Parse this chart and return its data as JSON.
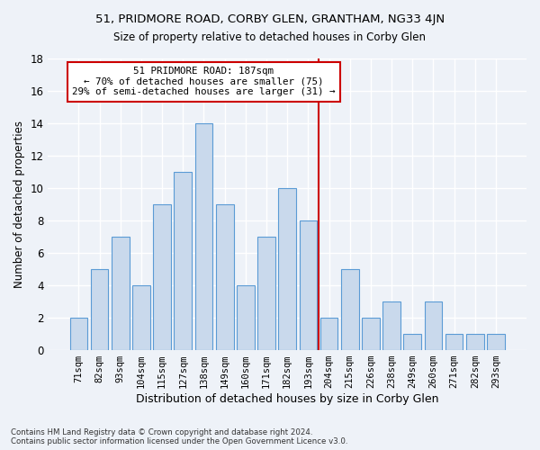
{
  "title": "51, PRIDMORE ROAD, CORBY GLEN, GRANTHAM, NG33 4JN",
  "subtitle": "Size of property relative to detached houses in Corby Glen",
  "xlabel": "Distribution of detached houses by size in Corby Glen",
  "ylabel": "Number of detached properties",
  "categories": [
    "71sqm",
    "82sqm",
    "93sqm",
    "104sqm",
    "115sqm",
    "127sqm",
    "138sqm",
    "149sqm",
    "160sqm",
    "171sqm",
    "182sqm",
    "193sqm",
    "204sqm",
    "215sqm",
    "226sqm",
    "238sqm",
    "249sqm",
    "260sqm",
    "271sqm",
    "282sqm",
    "293sqm"
  ],
  "values": [
    2,
    5,
    7,
    4,
    9,
    11,
    14,
    9,
    4,
    7,
    10,
    8,
    2,
    5,
    2,
    3,
    1,
    3,
    1,
    1,
    1
  ],
  "bar_color": "#c9d9ec",
  "bar_edge_color": "#5b9bd5",
  "property_line_idx": 11.5,
  "property_line_color": "#cc0000",
  "annotation_text": "51 PRIDMORE ROAD: 187sqm\n← 70% of detached houses are smaller (75)\n29% of semi-detached houses are larger (31) →",
  "annotation_box_color": "#ffffff",
  "annotation_box_edge_color": "#cc0000",
  "ylim": [
    0,
    18
  ],
  "yticks": [
    0,
    2,
    4,
    6,
    8,
    10,
    12,
    14,
    16,
    18
  ],
  "footnote": "Contains HM Land Registry data © Crown copyright and database right 2024.\nContains public sector information licensed under the Open Government Licence v3.0.",
  "bg_color": "#eef2f8",
  "grid_color": "#ffffff"
}
